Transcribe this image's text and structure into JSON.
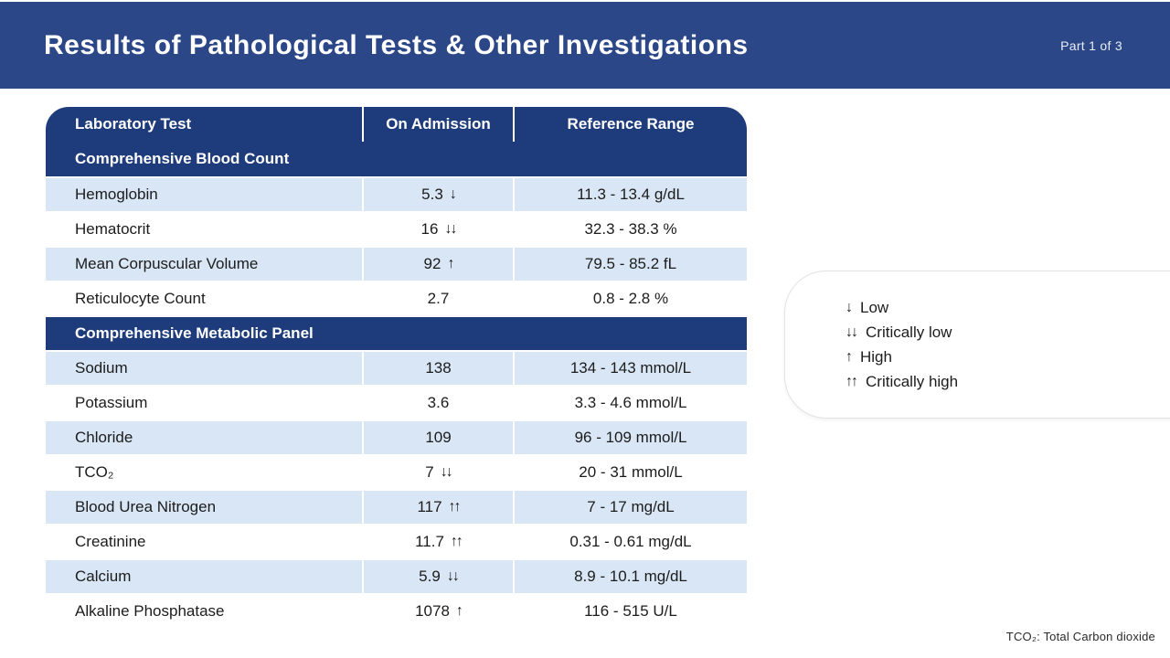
{
  "header": {
    "title": "Results of Pathological Tests & Other Investigations",
    "part_label": "Part 1 of 3"
  },
  "colors": {
    "banner_blue": "#2b4787",
    "table_navy": "#1e3c7c",
    "row_light_blue": "#d8e6f5",
    "text_dark": "#1c1c1c"
  },
  "table": {
    "columns": [
      "Laboratory Test",
      "On Admission",
      "Reference Range"
    ],
    "sections": [
      {
        "title": "Comprehensive Blood Count",
        "rows": [
          {
            "test": "Hemoglobin",
            "value": "5.3",
            "flag": "↓",
            "range": "11.3 - 13.4 g/dL"
          },
          {
            "test": "Hematocrit",
            "value": "16",
            "flag": "↓↓",
            "range": "32.3 - 38.3 %"
          },
          {
            "test": "Mean Corpuscular Volume",
            "value": "92",
            "flag": "↑",
            "range": "79.5 - 85.2 fL"
          },
          {
            "test": "Reticulocyte Count",
            "value": "2.7",
            "flag": "",
            "range": "0.8 - 2.8 %"
          }
        ]
      },
      {
        "title": "Comprehensive Metabolic Panel",
        "rows": [
          {
            "test": "Sodium",
            "value": "138",
            "flag": "",
            "range": "134 - 143 mmol/L"
          },
          {
            "test": "Potassium",
            "value": "3.6",
            "flag": "",
            "range": "3.3 - 4.6 mmol/L"
          },
          {
            "test": "Chloride",
            "value": "109",
            "flag": "",
            "range": "96 - 109 mmol/L"
          },
          {
            "test": "TCO₂",
            "value": "7",
            "flag": "↓↓",
            "range": "20 - 31 mmol/L"
          },
          {
            "test": "Blood Urea Nitrogen",
            "value": "117",
            "flag": "↑↑",
            "range": "7 - 17 mg/dL"
          },
          {
            "test": "Creatinine",
            "value": "11.7",
            "flag": "↑↑",
            "range": "0.31 - 0.61 mg/dL"
          },
          {
            "test": "Calcium",
            "value": "5.9",
            "flag": "↓↓",
            "range": "8.9 - 10.1 mg/dL"
          },
          {
            "test": "Alkaline Phosphatase",
            "value": "1078",
            "flag": "↑",
            "range": "116 - 515 U/L"
          }
        ]
      }
    ]
  },
  "legend": {
    "items": [
      {
        "symbol": "↓",
        "label": "Low"
      },
      {
        "symbol": "↓↓",
        "label": "Critically low"
      },
      {
        "symbol": "↑",
        "label": "High"
      },
      {
        "symbol": "↑↑",
        "label": "Critically high"
      }
    ]
  },
  "footnote": "TCO₂: Total Carbon dioxide"
}
